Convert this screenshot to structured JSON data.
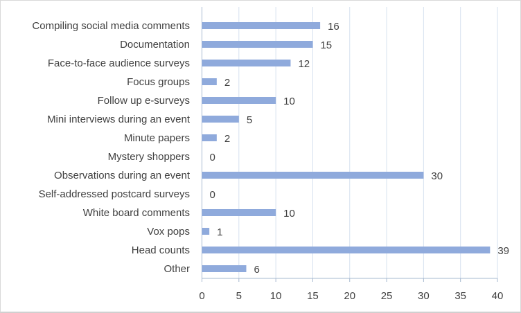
{
  "chart_data": {
    "type": "bar",
    "orientation": "horizontal",
    "title": "",
    "xlabel": "",
    "ylabel": "",
    "categories": [
      "Compiling social media comments",
      "Documentation",
      "Face-to-face audience surveys",
      "Focus groups",
      "Follow up e-surveys",
      "Mini interviews during an event",
      "Minute papers",
      "Mystery shoppers",
      "Observations during an event",
      "Self-addressed postcard surveys",
      "White board comments",
      "Vox pops",
      "Head counts",
      "Other"
    ],
    "values": [
      16,
      15,
      12,
      2,
      10,
      5,
      2,
      0,
      30,
      0,
      10,
      1,
      39,
      6
    ],
    "xlim": [
      0,
      40
    ],
    "xticks": [
      "0",
      "5",
      "10",
      "15",
      "20",
      "25",
      "30",
      "35",
      "40"
    ],
    "grid": true,
    "legend": "none",
    "bar_color": "#8faadc",
    "grid_color": "#d6e1ef"
  }
}
